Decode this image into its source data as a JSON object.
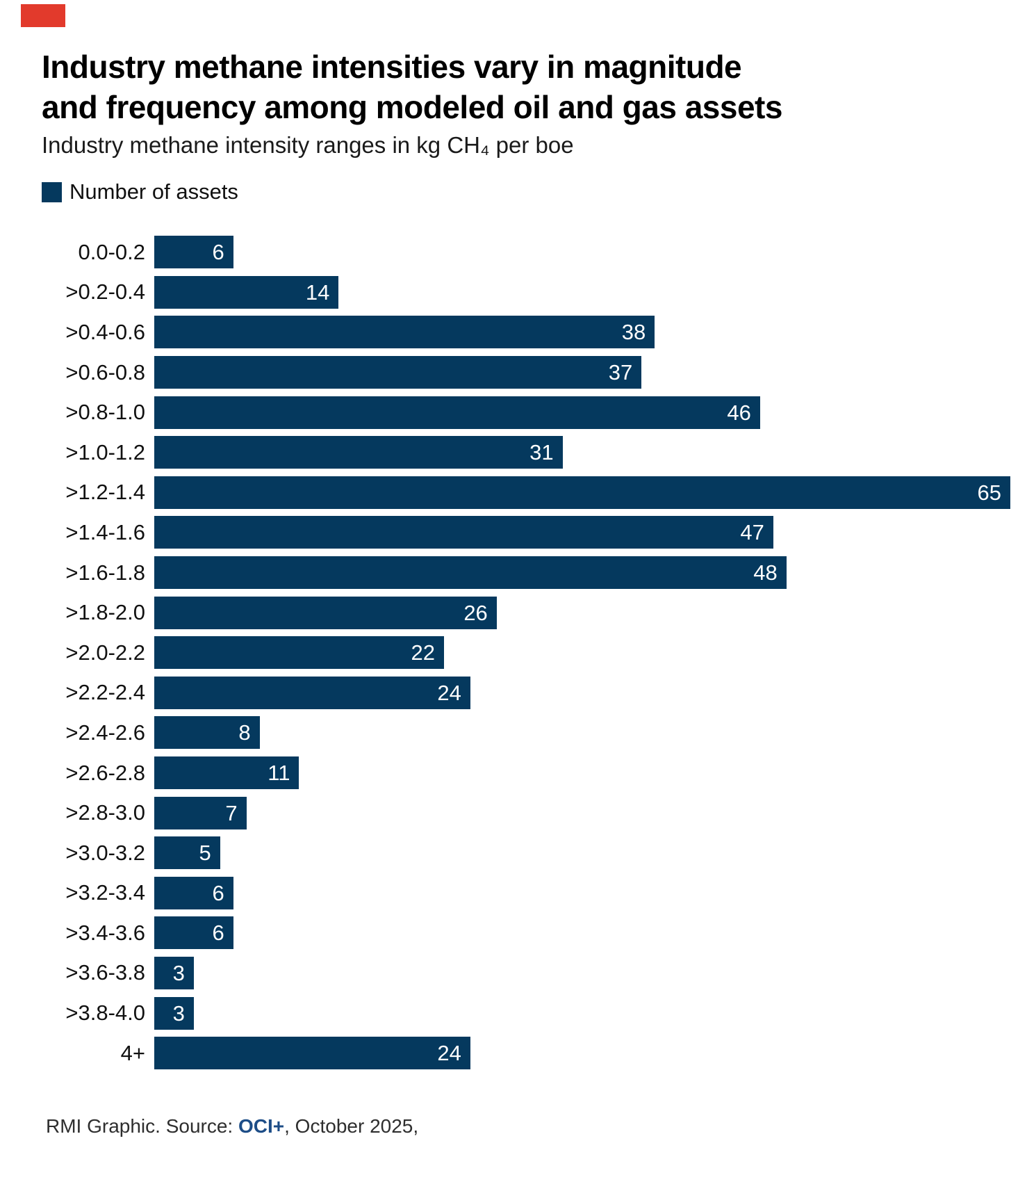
{
  "accents": {
    "marker_red": "#e23a2c",
    "navy": "#05395E",
    "link_blue": "#1d4d87"
  },
  "header": {
    "title_lines": [
      "Industry methane intensities vary in magnitude",
      "and frequency among modeled oil and gas assets"
    ],
    "subtitle": "Industry methane intensity ranges in kg CH₄ per boe"
  },
  "legend": {
    "label": "Number of assets",
    "swatch_color": "#05395E"
  },
  "chart_data": {
    "type": "bar",
    "orientation": "horizontal",
    "title": "Industry methane intensities vary in magnitude and frequency among modeled oil and gas assets",
    "subtitle": "Industry methane intensity ranges in kg CH₄ per boe",
    "series_label": "Number of assets",
    "categories": [
      "0.0-0.2",
      ">0.2-0.4",
      ">0.4-0.6",
      ">0.6-0.8",
      ">0.8-1.0",
      ">1.0-1.2",
      ">1.2-1.4",
      ">1.4-1.6",
      ">1.6-1.8",
      ">1.8-2.0",
      ">2.0-2.2",
      ">2.2-2.4",
      ">2.4-2.6",
      ">2.6-2.8",
      ">2.8-3.0",
      ">3.0-3.2",
      ">3.2-3.4",
      ">3.4-3.6",
      ">3.6-3.8",
      ">3.8-4.0",
      "4+"
    ],
    "values": [
      6,
      14,
      38,
      37,
      46,
      31,
      65,
      47,
      48,
      26,
      22,
      24,
      8,
      11,
      7,
      5,
      6,
      6,
      3,
      3,
      24
    ],
    "xlabel": "",
    "ylabel": "",
    "xlim": [
      0,
      65
    ],
    "grid": false,
    "bar_color": "#05395E",
    "value_label_color": "#ffffff",
    "value_label_position": "inside-end",
    "legend_position": "top-left"
  },
  "footer": {
    "prefix": "RMI Graphic. Source: ",
    "source": "OCI+",
    "suffix": ", October 2025,"
  }
}
